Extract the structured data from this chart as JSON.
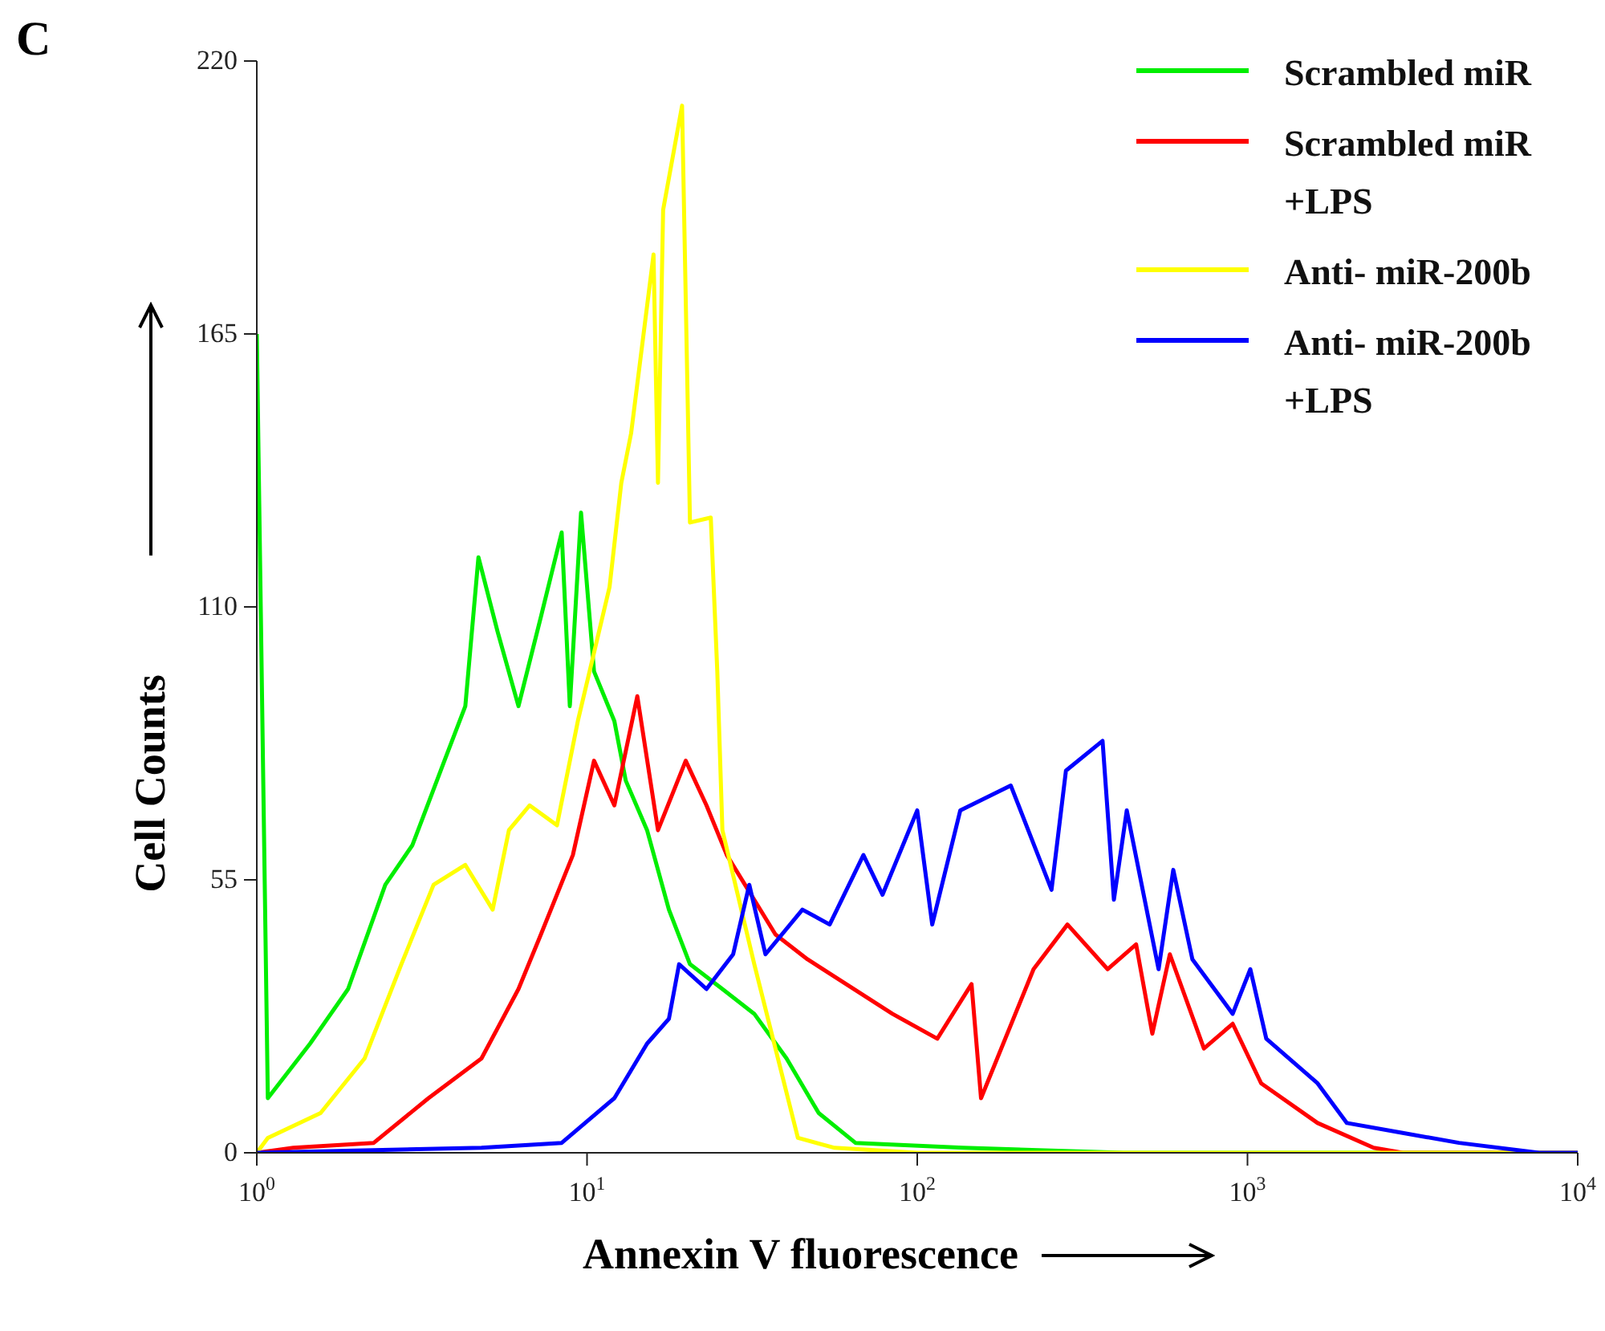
{
  "chart_data": {
    "type": "line",
    "xlabel": "Annexin V fluorescence",
    "ylabel": "Cell Counts",
    "annotations": [
      "C"
    ],
    "log": "x",
    "xlim": [
      1,
      10000
    ],
    "xticks": [
      {
        "value": 1,
        "label": "10$^{0}$"
      },
      {
        "value": 10,
        "label": "10$^{1}$"
      },
      {
        "value": 100,
        "label": "10$^{2}$"
      },
      {
        "value": 1000,
        "label": "10$^{3}$"
      },
      {
        "value": 10000,
        "label": "10$^{4}$"
      }
    ],
    "ylim": [
      0,
      220
    ],
    "yticks": [
      0,
      55,
      110,
      165,
      220
    ],
    "grid": false,
    "legend": "top right",
    "marker": "none",
    "line_style": "solid",
    "series": [
      {
        "name": "Scrambled miR",
        "color": "#00ee00",
        "x": [
          1,
          1.08,
          1.45,
          1.89,
          2.45,
          2.96,
          3.7,
          4.28,
          4.69,
          5.36,
          6.2,
          7.25,
          8.38,
          8.87,
          9.59,
          10.5,
          12.1,
          13.1,
          15.2,
          17.7,
          20.5,
          25.7,
          32.1,
          40.2,
          50.3,
          65,
          138,
          421,
          10000
        ],
        "values": [
          165,
          11,
          22,
          33,
          54,
          62,
          79,
          90,
          120,
          105,
          90,
          108,
          125,
          90,
          129,
          97,
          87,
          75,
          65,
          49,
          38,
          33,
          28,
          19,
          8,
          2,
          1,
          0,
          0
        ]
      },
      {
        "name": "Scrambled miR +LPS",
        "color": "#ff0000",
        "x": [
          1,
          1.29,
          2.26,
          3.31,
          4.79,
          6.2,
          7.25,
          9.06,
          10.5,
          12.1,
          14.2,
          16.4,
          19.9,
          23,
          26.5,
          37.2,
          46.5,
          84.1,
          115,
          146,
          156,
          225,
          285,
          377,
          460,
          515,
          582,
          738,
          902,
          1100,
          1630,
          2410,
          2950,
          10000
        ],
        "values": [
          0,
          1,
          2,
          11,
          19,
          33,
          44,
          60,
          79,
          70,
          92,
          65,
          79,
          70,
          60,
          44,
          39,
          28,
          23,
          34,
          11,
          37,
          46,
          37,
          42,
          24,
          40,
          21,
          26,
          14,
          6,
          1,
          0,
          0
        ]
      },
      {
        "name": "Anti- miR-200b",
        "color": "#ffff00",
        "x": [
          1,
          1.08,
          1.56,
          2.12,
          2.74,
          3.43,
          4.28,
          5.18,
          5.8,
          6.7,
          8.11,
          9.38,
          11.7,
          12.7,
          13.6,
          15.9,
          16.4,
          17,
          19.4,
          20.5,
          23.7,
          24.8,
          25.7,
          32.1,
          43.5,
          56.2,
          100,
          10000
        ],
        "values": [
          0,
          3,
          8,
          19,
          38,
          54,
          58,
          49,
          65,
          70,
          66,
          87,
          114,
          135,
          145,
          181,
          135,
          190,
          211,
          127,
          128,
          97,
          65,
          38,
          3,
          1,
          0,
          0
        ]
      },
      {
        "name": "Anti- miR-200b +LPS",
        "color": "#0000ff",
        "x": [
          1,
          4.79,
          8.38,
          12.1,
          15.2,
          17.7,
          19,
          23,
          27.7,
          31,
          34.7,
          44.9,
          54.3,
          68.7,
          78.5,
          100,
          111,
          135,
          192,
          255,
          282,
          364,
          394,
          431,
          538,
          596,
          681,
          902,
          1020,
          1140,
          1630,
          2000,
          2950,
          4370,
          7640,
          10000
        ],
        "values": [
          0,
          1,
          2,
          11,
          22,
          27,
          38,
          33,
          40,
          54,
          40,
          49,
          46,
          60,
          52,
          69,
          46,
          69,
          74,
          53,
          77,
          83,
          51,
          69,
          37,
          57,
          39,
          28,
          37,
          23,
          14,
          6,
          4,
          2,
          0,
          0
        ]
      }
    ]
  }
}
